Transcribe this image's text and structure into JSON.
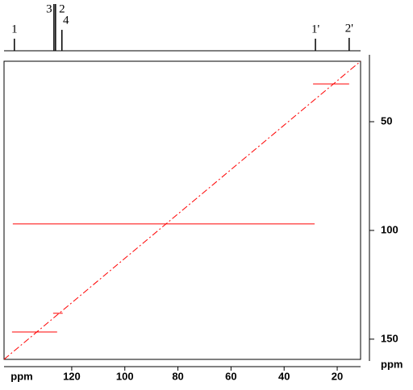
{
  "chart_data": {
    "type": "nmr2d",
    "x_label": "ppm",
    "y_label": "ppm",
    "xlim": [
      145.5,
      11.2
    ],
    "xticks": [
      120,
      100,
      80,
      60,
      40,
      20
    ],
    "ylim": [
      22.2,
      159.3
    ],
    "yticks": [
      50,
      100,
      150
    ],
    "peaks": {
      "labels": [
        "1",
        "3",
        "2",
        "4",
        "1'",
        "2'"
      ],
      "x": [
        141.6,
        126.7,
        126.1,
        123.7,
        28.2,
        15.5
      ],
      "values": [
        15,
        58,
        58,
        26,
        15,
        16
      ]
    },
    "correlations": {
      "y": [
        32.6,
        97.0,
        138.1,
        146.7
      ],
      "x_start": [
        29.1,
        142.2,
        127.0,
        142.5
      ],
      "x_end": [
        15.5,
        28.5,
        123.4,
        125.5
      ],
      "color": "#ff0000"
    }
  }
}
